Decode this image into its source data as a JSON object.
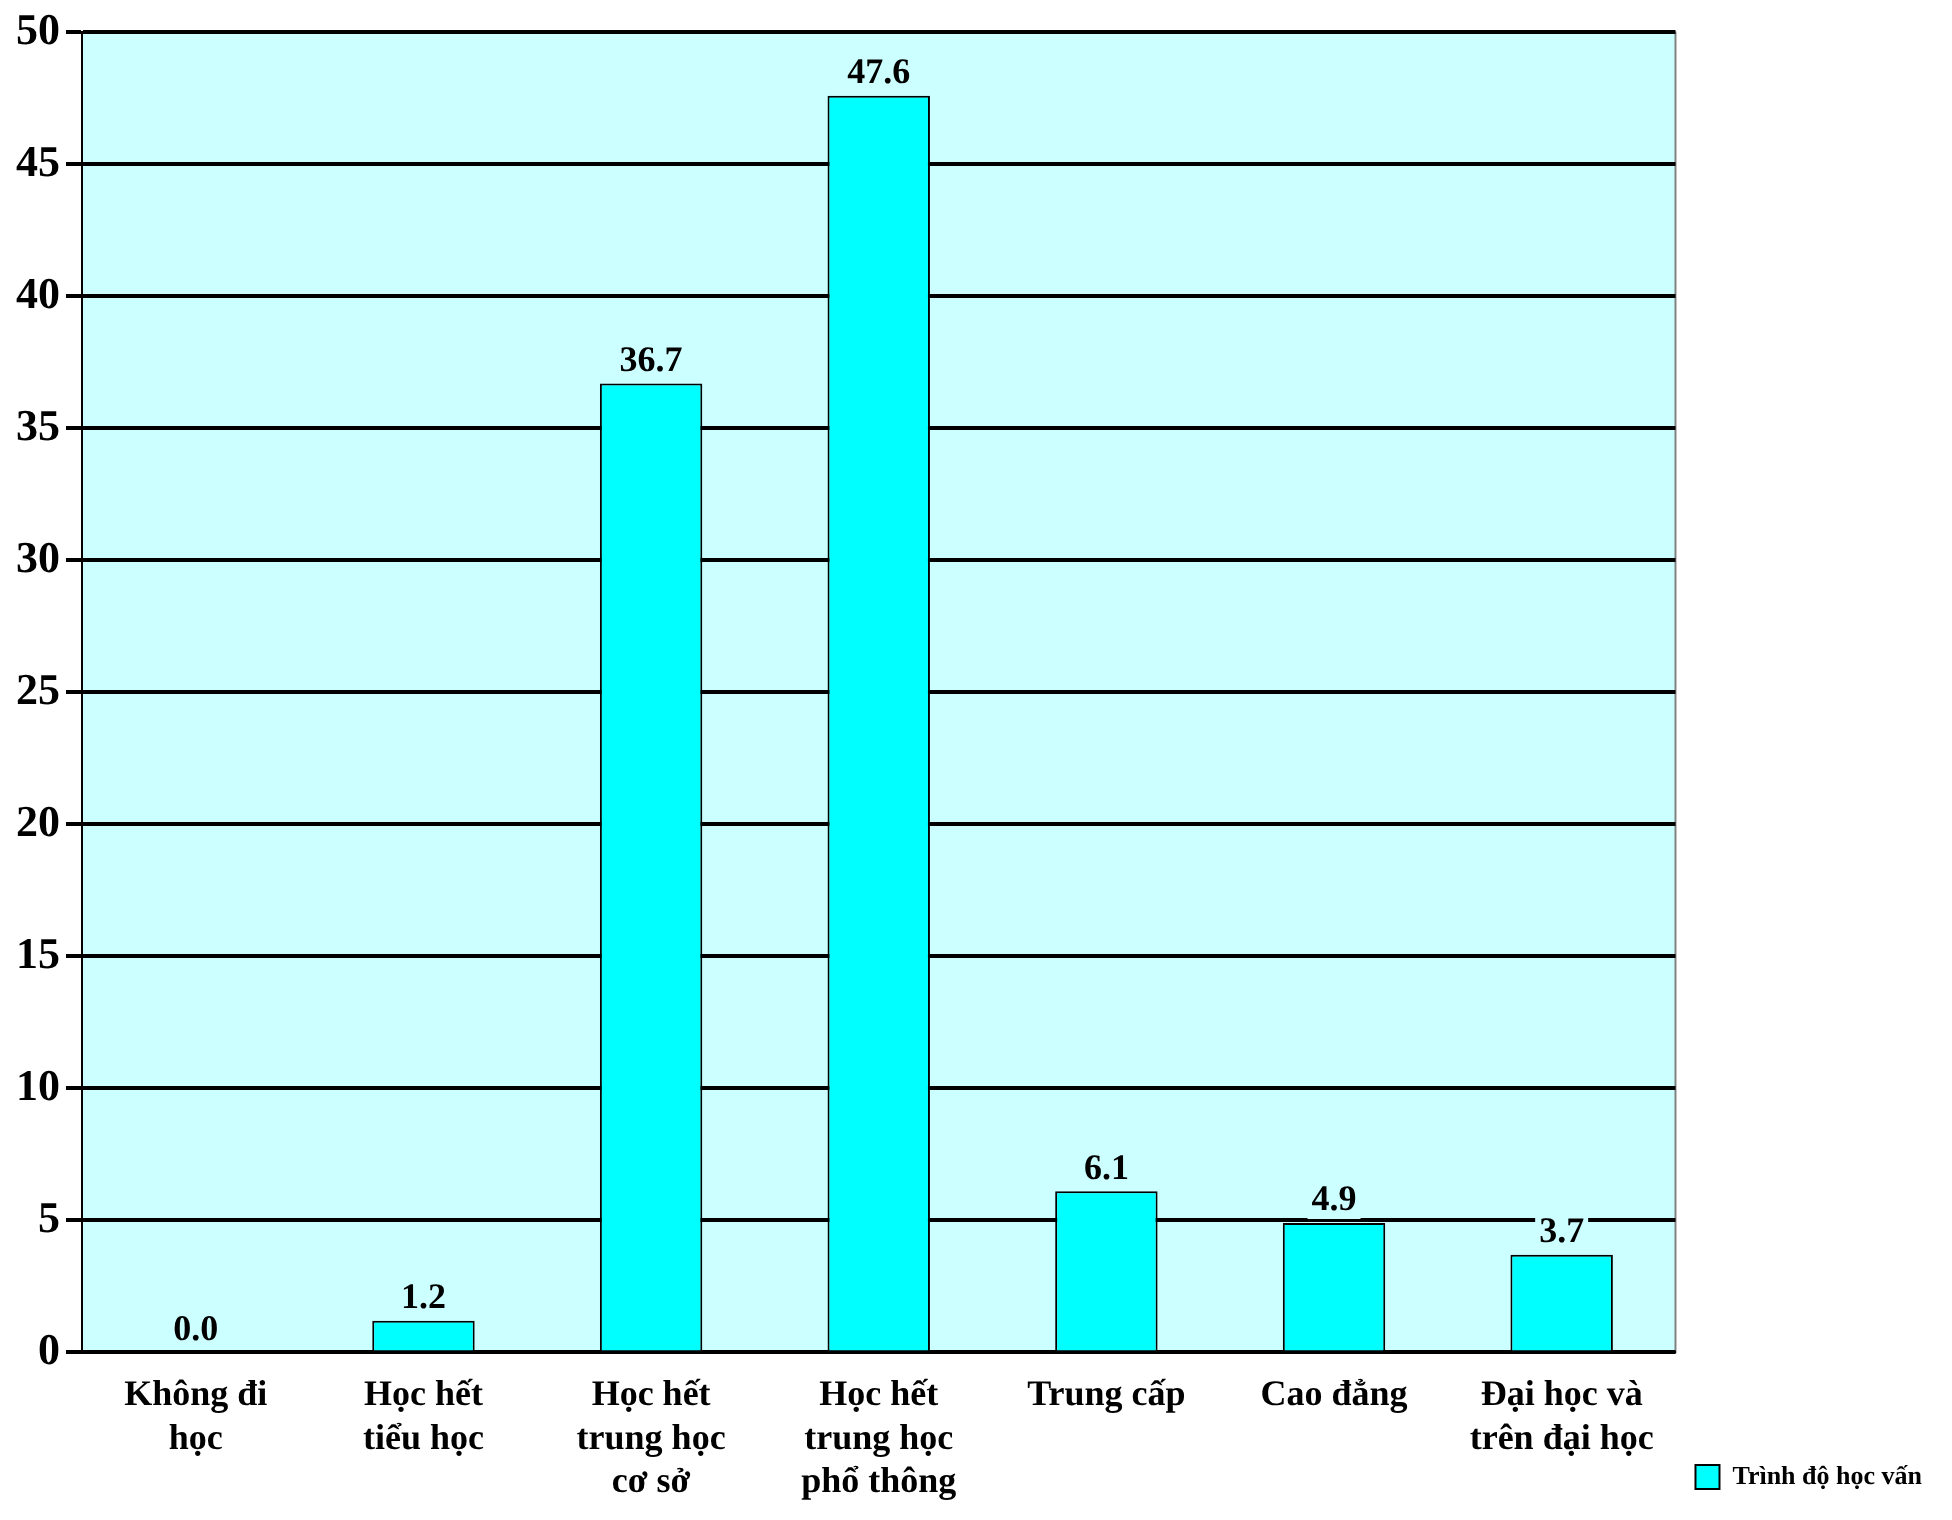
{
  "chart_data": {
    "type": "bar",
    "categories": [
      "Không đi học",
      "Học hết tiểu học",
      "Học hết trung học cơ sở",
      "Học hết trung học phổ thông",
      "Trung cấp",
      "Cao đẳng",
      "Đại học và trên đại học"
    ],
    "series": [
      {
        "name": "Trình độ học vấn",
        "color": "#00ffff",
        "values": [
          0.0,
          1.2,
          36.7,
          47.6,
          6.1,
          4.9,
          3.7
        ],
        "value_labels": [
          "0.0",
          "1.2",
          "36.7",
          "47.6",
          "6.1",
          "4.9",
          "3.7"
        ]
      }
    ],
    "ylim": [
      0,
      50
    ],
    "yticks": [
      0,
      5,
      10,
      15,
      20,
      25,
      30,
      35,
      40,
      45,
      50
    ],
    "grid": "y",
    "legend": "bottom right"
  }
}
